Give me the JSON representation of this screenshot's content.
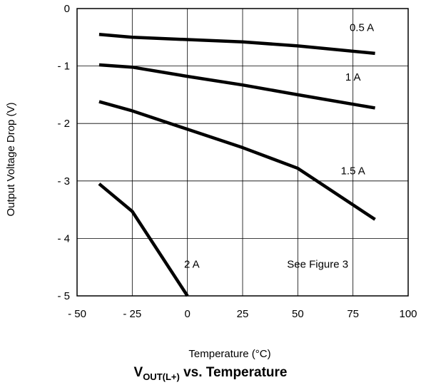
{
  "chart_data": {
    "type": "line",
    "title_main": "V",
    "title_sub": "OUT(L+)",
    "title_rest": " vs. Temperature",
    "xlabel": "Temperature (°C)",
    "ylabel": "Output Voltage Drop (V)",
    "xlim": [
      -50,
      100
    ],
    "ylim": [
      -5,
      0
    ],
    "xticks": [
      -50,
      -25,
      0,
      25,
      50,
      75,
      100
    ],
    "yticks": [
      0,
      -1,
      -2,
      -3,
      -4,
      -5
    ],
    "xtick_labels": [
      "- 50",
      "- 25",
      "0",
      "25",
      "50",
      "75",
      "100"
    ],
    "ytick_labels": [
      "0",
      "- 1",
      "- 2",
      "- 3",
      "- 4",
      "- 5"
    ],
    "grid": true,
    "series": [
      {
        "name": "0.5 A",
        "x": [
          -40,
          -25,
          0,
          25,
          50,
          85
        ],
        "y": [
          -0.45,
          -0.5,
          -0.54,
          -0.58,
          -0.65,
          -0.78
        ]
      },
      {
        "name": "1 A",
        "x": [
          -40,
          -25,
          0,
          25,
          50,
          85
        ],
        "y": [
          -0.98,
          -1.02,
          -1.18,
          -1.33,
          -1.5,
          -1.73
        ]
      },
      {
        "name": "1.5 A",
        "x": [
          -40,
          -25,
          0,
          25,
          50,
          85
        ],
        "y": [
          -1.62,
          -1.78,
          -2.1,
          -2.42,
          -2.78,
          -3.67
        ]
      },
      {
        "name": "2 A",
        "x": [
          -40,
          -25,
          0
        ],
        "y": [
          -3.05,
          -3.53,
          -5.0
        ]
      }
    ],
    "annotation": "See Figure 3"
  }
}
